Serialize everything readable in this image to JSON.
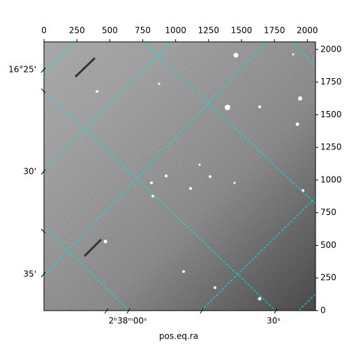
{
  "chart_data": {
    "type": "image",
    "xlabel": "pos.eq.ra",
    "xlim": [
      0,
      2062
    ],
    "xticks": [
      0,
      250,
      500,
      750,
      1000,
      1250,
      1500,
      1750,
      2000
    ],
    "ylim": [
      0,
      2058
    ],
    "yticks": [
      0,
      250,
      500,
      750,
      1000,
      1250,
      1500,
      1750,
      2000
    ],
    "ra_tick_labels": [
      "2ʰ38ᵐ00ˢ",
      "30ˢ"
    ],
    "dec_tick_labels": [
      "16°25'",
      "30'",
      "35'"
    ],
    "grid_color": "#00e5e5"
  }
}
